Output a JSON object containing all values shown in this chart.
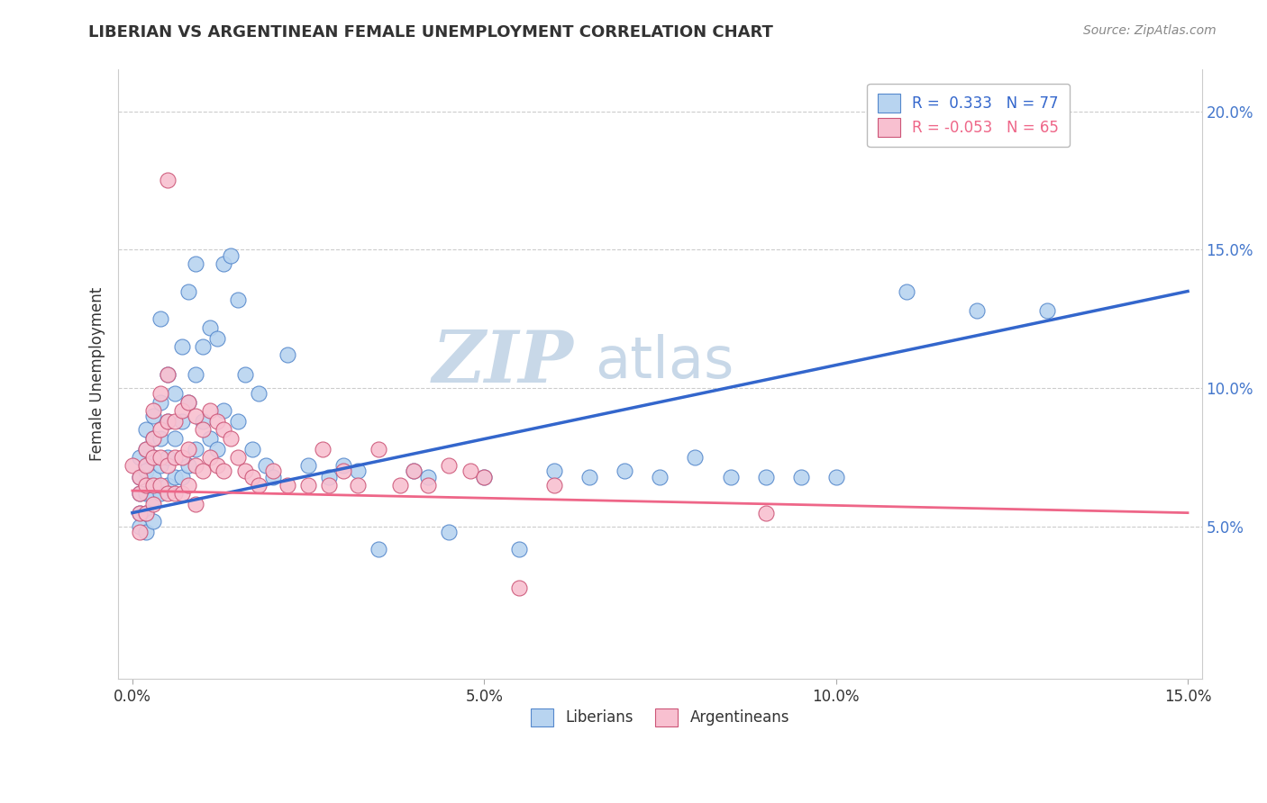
{
  "title": "LIBERIAN VS ARGENTINEAN FEMALE UNEMPLOYMENT CORRELATION CHART",
  "source_text": "Source: ZipAtlas.com",
  "ylabel": "Female Unemployment",
  "xlim": [
    -0.002,
    0.152
  ],
  "ylim": [
    -0.005,
    0.215
  ],
  "xticks": [
    0.0,
    0.05,
    0.1,
    0.15
  ],
  "xticklabels": [
    "0.0%",
    "5.0%",
    "10.0%",
    "15.0%"
  ],
  "yticks": [
    0.05,
    0.1,
    0.15,
    0.2
  ],
  "yticklabels": [
    "5.0%",
    "10.0%",
    "15.0%",
    "20.0%"
  ],
  "liberian_color": "#b8d4f0",
  "liberian_edge": "#5588cc",
  "argentinean_color": "#f8c0d0",
  "argentinean_edge": "#cc5577",
  "liberian_line_color": "#3366cc",
  "argentinean_line_color": "#ee6688",
  "watermark_zip": "ZIP",
  "watermark_atlas": "atlas",
  "watermark_color_zip": "#c8d8e8",
  "watermark_color_atlas": "#c8d8e8",
  "legend_label1": "R =  0.333   N = 77",
  "legend_label2": "R = -0.053   N = 65",
  "legend_color1": "#3366cc",
  "legend_color2": "#ee6688",
  "bottom_label1": "Liberians",
  "bottom_label2": "Argentineans",
  "liberian_points": [
    [
      0.001,
      0.075
    ],
    [
      0.001,
      0.068
    ],
    [
      0.001,
      0.062
    ],
    [
      0.001,
      0.055
    ],
    [
      0.001,
      0.05
    ],
    [
      0.002,
      0.085
    ],
    [
      0.002,
      0.078
    ],
    [
      0.002,
      0.07
    ],
    [
      0.002,
      0.062
    ],
    [
      0.002,
      0.055
    ],
    [
      0.002,
      0.048
    ],
    [
      0.003,
      0.09
    ],
    [
      0.003,
      0.082
    ],
    [
      0.003,
      0.075
    ],
    [
      0.003,
      0.068
    ],
    [
      0.003,
      0.06
    ],
    [
      0.003,
      0.052
    ],
    [
      0.004,
      0.125
    ],
    [
      0.004,
      0.095
    ],
    [
      0.004,
      0.082
    ],
    [
      0.004,
      0.072
    ],
    [
      0.004,
      0.062
    ],
    [
      0.005,
      0.105
    ],
    [
      0.005,
      0.088
    ],
    [
      0.005,
      0.075
    ],
    [
      0.005,
      0.065
    ],
    [
      0.006,
      0.098
    ],
    [
      0.006,
      0.082
    ],
    [
      0.006,
      0.068
    ],
    [
      0.007,
      0.115
    ],
    [
      0.007,
      0.088
    ],
    [
      0.007,
      0.068
    ],
    [
      0.008,
      0.135
    ],
    [
      0.008,
      0.095
    ],
    [
      0.008,
      0.072
    ],
    [
      0.009,
      0.145
    ],
    [
      0.009,
      0.105
    ],
    [
      0.009,
      0.078
    ],
    [
      0.01,
      0.115
    ],
    [
      0.01,
      0.088
    ],
    [
      0.011,
      0.122
    ],
    [
      0.011,
      0.082
    ],
    [
      0.012,
      0.118
    ],
    [
      0.012,
      0.078
    ],
    [
      0.013,
      0.145
    ],
    [
      0.013,
      0.092
    ],
    [
      0.014,
      0.148
    ],
    [
      0.015,
      0.132
    ],
    [
      0.015,
      0.088
    ],
    [
      0.016,
      0.105
    ],
    [
      0.017,
      0.078
    ],
    [
      0.018,
      0.098
    ],
    [
      0.019,
      0.072
    ],
    [
      0.02,
      0.068
    ],
    [
      0.022,
      0.112
    ],
    [
      0.025,
      0.072
    ],
    [
      0.028,
      0.068
    ],
    [
      0.03,
      0.072
    ],
    [
      0.032,
      0.07
    ],
    [
      0.035,
      0.042
    ],
    [
      0.04,
      0.07
    ],
    [
      0.042,
      0.068
    ],
    [
      0.045,
      0.048
    ],
    [
      0.05,
      0.068
    ],
    [
      0.055,
      0.042
    ],
    [
      0.06,
      0.07
    ],
    [
      0.065,
      0.068
    ],
    [
      0.07,
      0.07
    ],
    [
      0.075,
      0.068
    ],
    [
      0.08,
      0.075
    ],
    [
      0.085,
      0.068
    ],
    [
      0.09,
      0.068
    ],
    [
      0.095,
      0.068
    ],
    [
      0.1,
      0.068
    ],
    [
      0.11,
      0.135
    ],
    [
      0.12,
      0.128
    ],
    [
      0.13,
      0.128
    ]
  ],
  "argentinean_points": [
    [
      0.0,
      0.072
    ],
    [
      0.001,
      0.068
    ],
    [
      0.001,
      0.062
    ],
    [
      0.001,
      0.055
    ],
    [
      0.001,
      0.048
    ],
    [
      0.002,
      0.078
    ],
    [
      0.002,
      0.072
    ],
    [
      0.002,
      0.065
    ],
    [
      0.002,
      0.055
    ],
    [
      0.003,
      0.092
    ],
    [
      0.003,
      0.082
    ],
    [
      0.003,
      0.075
    ],
    [
      0.003,
      0.065
    ],
    [
      0.003,
      0.058
    ],
    [
      0.004,
      0.098
    ],
    [
      0.004,
      0.085
    ],
    [
      0.004,
      0.075
    ],
    [
      0.004,
      0.065
    ],
    [
      0.005,
      0.105
    ],
    [
      0.005,
      0.088
    ],
    [
      0.005,
      0.175
    ],
    [
      0.005,
      0.072
    ],
    [
      0.005,
      0.062
    ],
    [
      0.006,
      0.088
    ],
    [
      0.006,
      0.075
    ],
    [
      0.006,
      0.062
    ],
    [
      0.007,
      0.092
    ],
    [
      0.007,
      0.075
    ],
    [
      0.007,
      0.062
    ],
    [
      0.008,
      0.095
    ],
    [
      0.008,
      0.078
    ],
    [
      0.008,
      0.065
    ],
    [
      0.009,
      0.09
    ],
    [
      0.009,
      0.072
    ],
    [
      0.009,
      0.058
    ],
    [
      0.01,
      0.085
    ],
    [
      0.01,
      0.07
    ],
    [
      0.011,
      0.092
    ],
    [
      0.011,
      0.075
    ],
    [
      0.012,
      0.088
    ],
    [
      0.012,
      0.072
    ],
    [
      0.013,
      0.085
    ],
    [
      0.013,
      0.07
    ],
    [
      0.014,
      0.082
    ],
    [
      0.015,
      0.075
    ],
    [
      0.016,
      0.07
    ],
    [
      0.017,
      0.068
    ],
    [
      0.018,
      0.065
    ],
    [
      0.02,
      0.07
    ],
    [
      0.022,
      0.065
    ],
    [
      0.025,
      0.065
    ],
    [
      0.027,
      0.078
    ],
    [
      0.028,
      0.065
    ],
    [
      0.03,
      0.07
    ],
    [
      0.032,
      0.065
    ],
    [
      0.035,
      0.078
    ],
    [
      0.038,
      0.065
    ],
    [
      0.04,
      0.07
    ],
    [
      0.042,
      0.065
    ],
    [
      0.045,
      0.072
    ],
    [
      0.048,
      0.07
    ],
    [
      0.05,
      0.068
    ],
    [
      0.055,
      0.028
    ],
    [
      0.06,
      0.065
    ],
    [
      0.09,
      0.055
    ]
  ]
}
